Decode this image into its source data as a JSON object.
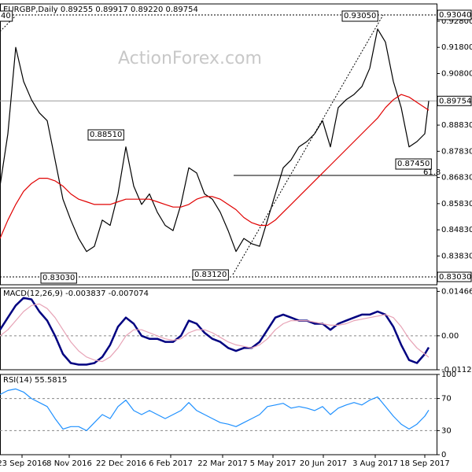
{
  "chart_data": [
    {
      "type": "line",
      "title": "EURGBP,Daily 0.89255 0.89917 0.89220 0.89754",
      "watermark": "ActionForex.com",
      "x": [
        0,
        5,
        10,
        15,
        20,
        25,
        30,
        35,
        40,
        45,
        50,
        55,
        60,
        65,
        70,
        75,
        80,
        85,
        90,
        95,
        100,
        105,
        110,
        115,
        120,
        125,
        130,
        135,
        140,
        145,
        150,
        155,
        160,
        165,
        170,
        175,
        180,
        185,
        190,
        195,
        200,
        205,
        210,
        215,
        220,
        225,
        230,
        235,
        240,
        245,
        250,
        255,
        260,
        265,
        270,
        272.5
      ],
      "xlim": [
        0,
        277.5
      ],
      "ylim": [
        0.8273,
        0.9346
      ],
      "yticks": [
        {
          "value": 0.928,
          "label": "0.92800"
        },
        {
          "value": 0.918,
          "label": "0.91800"
        },
        {
          "value": 0.908,
          "label": "0.90800"
        },
        {
          "value": 0.8883,
          "label": "0.88830"
        },
        {
          "value": 0.8783,
          "label": "0.87830"
        },
        {
          "value": 0.8683,
          "label": "0.86830"
        },
        {
          "value": 0.8583,
          "label": "0.85830"
        },
        {
          "value": 0.8483,
          "label": "0.84830"
        },
        {
          "value": 0.8383,
          "label": "0.83830"
        }
      ],
      "levels": [
        {
          "value": 0.9304,
          "label": "0.93040"
        },
        {
          "value": 0.8303,
          "label": "0.83030"
        },
        0.89754
      ],
      "annotations": [
        "0.93050",
        "0.88510",
        "0.87450",
        "0.83030",
        "0.83120",
        "61.8",
        "40"
      ],
      "series": [
        {
          "color": "#000000",
          "values": [
            0.865,
            0.885,
            0.918,
            0.905,
            0.898,
            0.893,
            0.89,
            0.875,
            0.86,
            0.852,
            0.845,
            0.84,
            0.842,
            0.852,
            0.85,
            0.862,
            0.88,
            0.865,
            0.858,
            0.862,
            0.855,
            0.85,
            0.848,
            0.858,
            0.872,
            0.87,
            0.862,
            0.86,
            0.855,
            0.848,
            0.84,
            0.845,
            0.843,
            0.842,
            0.852,
            0.862,
            0.872,
            0.875,
            0.88,
            0.882,
            0.885,
            0.89,
            0.88,
            0.895,
            0.898,
            0.9,
            0.903,
            0.91,
            0.925,
            0.92,
            0.905,
            0.895,
            0.88,
            0.882,
            0.885,
            0.89754
          ]
        },
        {
          "color": "#e00000",
          "values": [
            0.845,
            0.852,
            0.858,
            0.863,
            0.866,
            0.868,
            0.868,
            0.867,
            0.865,
            0.862,
            0.86,
            0.859,
            0.858,
            0.858,
            0.858,
            0.859,
            0.86,
            0.86,
            0.86,
            0.86,
            0.859,
            0.858,
            0.857,
            0.857,
            0.858,
            0.86,
            0.861,
            0.861,
            0.86,
            0.858,
            0.856,
            0.853,
            0.851,
            0.85,
            0.85,
            0.852,
            0.855,
            0.858,
            0.861,
            0.864,
            0.867,
            0.87,
            0.873,
            0.876,
            0.879,
            0.882,
            0.885,
            0.888,
            0.891,
            0.895,
            0.898,
            0.9,
            0.899,
            0.897,
            0.895,
            0.894
          ]
        }
      ]
    },
    {
      "type": "line",
      "title": "MACD(12,26,9) -0.003837 -0.007074",
      "x": [
        0,
        5,
        10,
        15,
        20,
        25,
        30,
        35,
        40,
        45,
        50,
        55,
        60,
        65,
        70,
        75,
        80,
        85,
        90,
        95,
        100,
        105,
        110,
        115,
        120,
        125,
        130,
        135,
        140,
        145,
        150,
        155,
        160,
        165,
        170,
        175,
        180,
        185,
        190,
        195,
        200,
        205,
        210,
        215,
        220,
        225,
        230,
        235,
        240,
        245,
        250,
        255,
        260,
        265,
        270,
        272.5
      ],
      "xlim": [
        0,
        277.5
      ],
      "ylim": [
        -0.0112,
        0.0158
      ],
      "yticks": [
        0.014661,
        {
          "value": 0,
          "label": "0.00"
        },
        -0.011202
      ],
      "grid_ticks": [
        1
      ],
      "series": [
        {
          "color": "#000080",
          "values": [
            0.002,
            0.006,
            0.01,
            0.0125,
            0.012,
            0.008,
            0.005,
            0.0,
            -0.006,
            -0.009,
            -0.0095,
            -0.0095,
            -0.009,
            -0.007,
            -0.003,
            0.003,
            0.006,
            0.004,
            0.0,
            -0.001,
            -0.001,
            -0.002,
            -0.002,
            0.0,
            0.005,
            0.004,
            0.001,
            -0.001,
            -0.002,
            -0.004,
            -0.005,
            -0.004,
            -0.004,
            -0.002,
            0.002,
            0.006,
            0.007,
            0.006,
            0.005,
            0.005,
            0.004,
            0.004,
            0.002,
            0.004,
            0.005,
            0.006,
            0.007,
            0.007,
            0.008,
            0.007,
            0.003,
            -0.003,
            -0.008,
            -0.009,
            -0.006,
            -0.003837
          ]
        },
        {
          "color": "#e7a3b6",
          "values": [
            0.0,
            0.002,
            0.005,
            0.008,
            0.01,
            0.0105,
            0.009,
            0.006,
            0.002,
            -0.002,
            -0.005,
            -0.007,
            -0.008,
            -0.0085,
            -0.007,
            -0.004,
            0.0,
            0.002,
            0.002,
            0.001,
            0.0,
            -0.001,
            -0.0015,
            -0.001,
            0.001,
            0.002,
            0.002,
            0.001,
            -0.0005,
            -0.002,
            -0.003,
            -0.0035,
            -0.004,
            -0.003,
            -0.001,
            0.002,
            0.004,
            0.005,
            0.005,
            0.005,
            0.0045,
            0.004,
            0.0035,
            0.0035,
            0.004,
            0.005,
            0.0055,
            0.006,
            0.0065,
            0.007,
            0.006,
            0.003,
            -0.001,
            -0.004,
            -0.006,
            -0.007074
          ]
        }
      ]
    },
    {
      "type": "line",
      "title": "RSI(14) 55.5815",
      "x": [
        0,
        5,
        10,
        15,
        20,
        25,
        30,
        35,
        40,
        45,
        50,
        55,
        60,
        65,
        70,
        75,
        80,
        85,
        90,
        95,
        100,
        105,
        110,
        115,
        120,
        125,
        130,
        135,
        140,
        145,
        150,
        155,
        160,
        165,
        170,
        175,
        180,
        185,
        190,
        195,
        200,
        205,
        210,
        215,
        220,
        225,
        230,
        235,
        240,
        245,
        250,
        255,
        260,
        265,
        270,
        272.5
      ],
      "xlim": [
        0,
        277.5
      ],
      "xticks": [
        {
          "value": 14,
          "label": "23 Sep 2016"
        },
        {
          "value": 44,
          "label": "8 Nov 2016"
        },
        {
          "value": 77,
          "label": "22 Dec 2016"
        },
        {
          "value": 108.5,
          "label": "6 Feb 2017"
        },
        {
          "value": 141.5,
          "label": "22 Mar 2017"
        },
        {
          "value": 173.5,
          "label": "5 May 2017"
        },
        {
          "value": 205.5,
          "label": "20 Jun 2017"
        },
        {
          "value": 238.5,
          "label": "3 Aug 2017"
        },
        {
          "value": 270,
          "label": "18 Sep 2017"
        }
      ],
      "ylim": [
        0,
        100
      ],
      "yticks": [
        100,
        70,
        30,
        0
      ],
      "grid_ticks": [
        1,
        2
      ],
      "series": [
        {
          "color": "#1e90ff",
          "values": [
            75,
            80,
            82,
            78,
            70,
            65,
            60,
            45,
            32,
            35,
            35,
            30,
            40,
            50,
            45,
            60,
            68,
            55,
            50,
            55,
            50,
            45,
            50,
            55,
            65,
            55,
            50,
            45,
            40,
            38,
            35,
            40,
            45,
            50,
            60,
            62,
            64,
            58,
            60,
            58,
            55,
            60,
            50,
            58,
            62,
            65,
            62,
            68,
            72,
            60,
            48,
            38,
            32,
            38,
            48,
            55.5815
          ]
        }
      ]
    }
  ]
}
